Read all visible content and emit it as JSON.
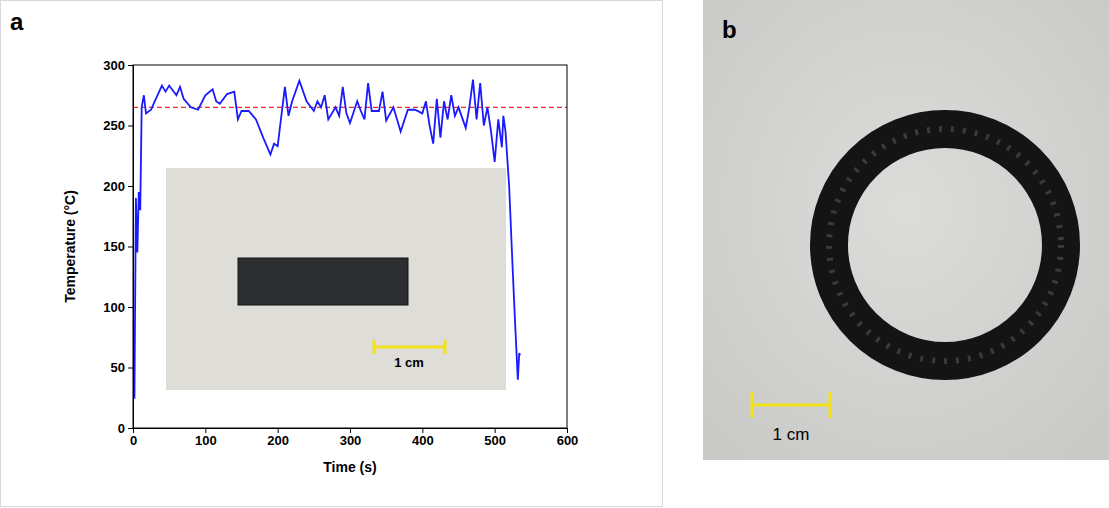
{
  "chart_data": {
    "type": "line",
    "panel_label": "a",
    "x_label": "Time (s)",
    "y_label": "Temperature (°C)",
    "x": [
      0,
      2,
      4,
      6,
      8,
      10,
      12,
      15,
      18,
      25,
      30,
      40,
      45,
      50,
      60,
      65,
      70,
      80,
      90,
      100,
      110,
      115,
      120,
      130,
      140,
      145,
      150,
      160,
      170,
      180,
      190,
      195,
      200,
      210,
      215,
      220,
      230,
      240,
      250,
      255,
      260,
      265,
      270,
      280,
      285,
      290,
      295,
      300,
      310,
      315,
      320,
      325,
      330,
      340,
      345,
      350,
      360,
      370,
      380,
      390,
      400,
      405,
      410,
      415,
      420,
      425,
      430,
      435,
      440,
      445,
      450,
      460,
      465,
      470,
      475,
      480,
      485,
      490,
      495,
      500,
      505,
      510,
      512,
      515,
      520,
      525,
      528,
      530,
      532,
      534,
      535
    ],
    "values": [
      25,
      25,
      190,
      145,
      195,
      180,
      265,
      275,
      260,
      263,
      270,
      283,
      278,
      283,
      275,
      282,
      272,
      265,
      263,
      275,
      280,
      270,
      268,
      276,
      278,
      255,
      262,
      262,
      255,
      240,
      226,
      235,
      233,
      282,
      258,
      270,
      287,
      270,
      262,
      270,
      265,
      275,
      255,
      265,
      258,
      282,
      260,
      252,
      270,
      262,
      255,
      285,
      262,
      262,
      278,
      254,
      265,
      245,
      263,
      263,
      260,
      270,
      250,
      235,
      272,
      240,
      270,
      255,
      275,
      258,
      265,
      248,
      265,
      288,
      255,
      285,
      250,
      265,
      245,
      220,
      255,
      232,
      258,
      245,
      200,
      130,
      90,
      65,
      40,
      62,
      60
    ],
    "color": "#1a1aff",
    "xlim": [
      0,
      600
    ],
    "xticks": [
      0,
      100,
      200,
      300,
      400,
      500,
      600
    ],
    "ylim": [
      0,
      300
    ],
    "yticks": [
      0,
      50,
      100,
      150,
      200,
      250,
      300
    ],
    "grid": false,
    "reference_line": {
      "value": 265,
      "color": "#e8302c",
      "line_style": "dashed"
    },
    "inset": {
      "scale_bar_label": "1 cm"
    }
  },
  "panel_b": {
    "label": "b",
    "scale_bar_label": "1 cm"
  }
}
